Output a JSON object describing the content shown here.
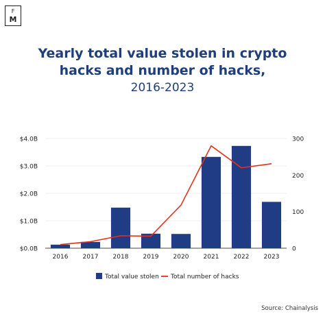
{
  "brand": {
    "top": "F",
    "bottom": "M"
  },
  "chart_data": {
    "type": "bar",
    "title_line1": "Yearly total value stolen in crypto",
    "title_line2": "hacks and number of hacks,",
    "subtitle": "2016-2023",
    "categories": [
      "2016",
      "2017",
      "2018",
      "2019",
      "2020",
      "2021",
      "2022",
      "2023"
    ],
    "series": [
      {
        "name": "Total value stolen",
        "type": "bar",
        "axis": "left",
        "unit": "B",
        "values": [
          0.13,
          0.23,
          1.48,
          0.53,
          0.52,
          3.33,
          3.73,
          1.69
        ]
      },
      {
        "name": "Total number of hacks",
        "type": "line",
        "axis": "right",
        "values": [
          10,
          18,
          34,
          33,
          118,
          280,
          220,
          231
        ]
      }
    ],
    "y_left": {
      "range": [
        0,
        4
      ],
      "ticks": [
        "$0.0B",
        "$1.0B",
        "$2.0B",
        "$3.0B",
        "$4.0B"
      ]
    },
    "y_right": {
      "range": [
        0,
        300
      ],
      "ticks": [
        "0",
        "100",
        "200",
        "300"
      ]
    },
    "grid": true,
    "legend": "bottom",
    "colors": {
      "bar": "#1f3c85",
      "line": "#e0321c",
      "title": "#1f3f7a",
      "grid": "#e6e6e6"
    }
  },
  "source": "Source: Chainalysis"
}
